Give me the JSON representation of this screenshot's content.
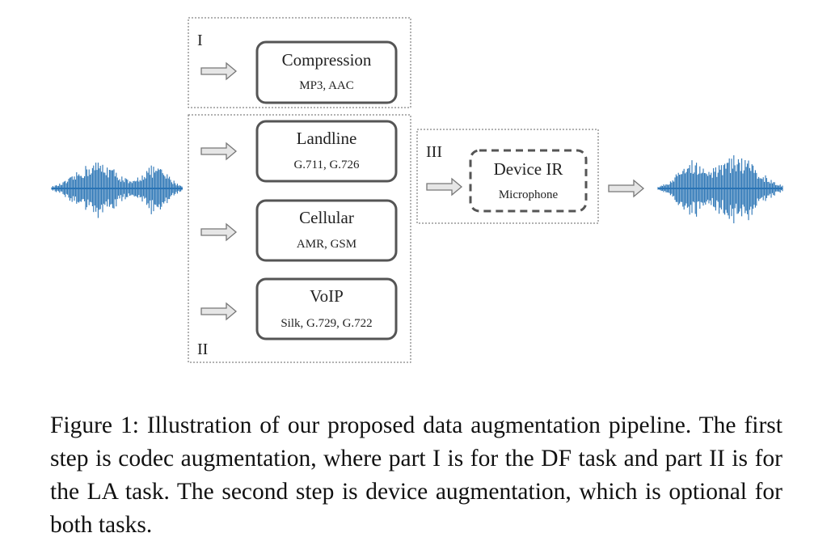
{
  "groups": {
    "g1": {
      "label": "I"
    },
    "g2": {
      "label": "II"
    },
    "g3": {
      "label": "III"
    }
  },
  "boxes": {
    "compression": {
      "title": "Compression",
      "subtitle": "MP3, AAC"
    },
    "landline": {
      "title": "Landline",
      "subtitle": "G.711, G.726"
    },
    "cellular": {
      "title": "Cellular",
      "subtitle": "AMR, GSM"
    },
    "voip": {
      "title": "VoIP",
      "subtitle": "Silk, G.729, G.722"
    },
    "device_ir": {
      "title": "Device IR",
      "subtitle": "Microphone"
    }
  },
  "caption": "Figure 1:  Illustration of our proposed data augmentation pipeline. The first step is codec augmentation, where part I is for the DF task and part II is for the LA task. The second step is device augmentation, which is optional for both tasks.",
  "colors": {
    "waveform": "#2a74b5",
    "box_border": "#555555",
    "group_border": "#666666",
    "arrow_fill": "#e6e6e6",
    "arrow_stroke": "#777777"
  }
}
